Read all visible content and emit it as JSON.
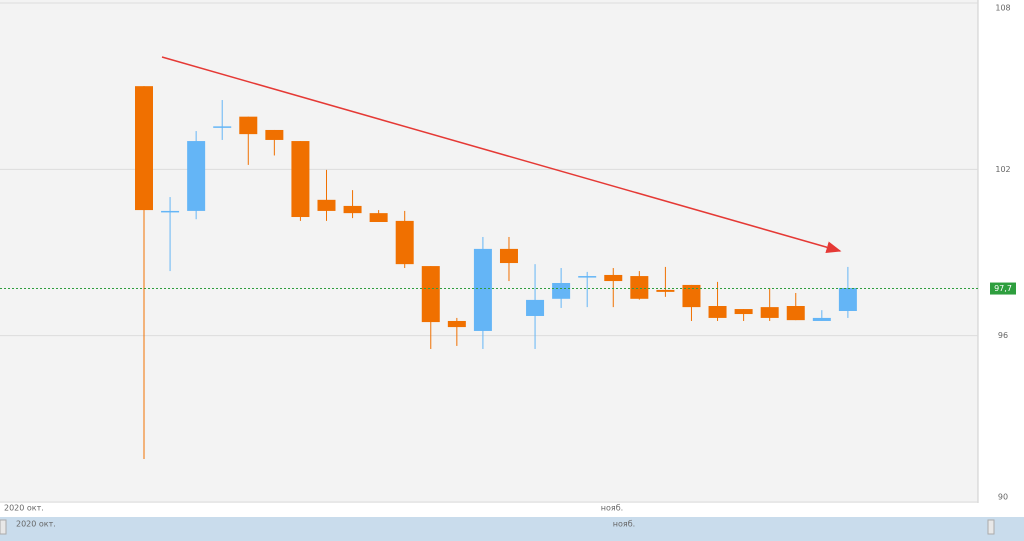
{
  "chart_data": {
    "type": "candlestick",
    "open": [
      105.0,
      100.5,
      100.5,
      103.5,
      103.9,
      103.42,
      103.02,
      100.9,
      100.68,
      100.42,
      100.14,
      98.51,
      96.53,
      96.17,
      99.13,
      96.71,
      97.33,
      98.15,
      98.19,
      98.15,
      97.65,
      97.83,
      97.07,
      96.96,
      97.03,
      97.07,
      96.53,
      96.89
    ],
    "high": [
      105.0,
      101.0,
      103.38,
      104.5,
      103.9,
      103.42,
      103.02,
      101.98,
      101.25,
      100.53,
      100.5,
      98.51,
      96.64,
      99.56,
      99.56,
      98.58,
      98.44,
      98.3,
      98.44,
      98.33,
      98.48,
      97.83,
      97.94,
      96.96,
      97.72,
      97.54,
      96.92,
      98.48
    ],
    "low": [
      91.55,
      98.33,
      100.2,
      103.06,
      102.16,
      102.5,
      100.14,
      100.14,
      100.24,
      100.1,
      98.44,
      95.52,
      95.63,
      95.52,
      97.97,
      95.52,
      97.0,
      97.03,
      97.03,
      97.3,
      97.4,
      96.53,
      96.53,
      96.53,
      96.53,
      96.56,
      96.53,
      96.64
    ],
    "close": [
      100.53,
      100.5,
      103.02,
      103.55,
      103.27,
      103.06,
      100.28,
      100.5,
      100.42,
      100.1,
      98.58,
      96.49,
      96.31,
      99.13,
      98.62,
      97.29,
      97.9,
      98.15,
      97.97,
      97.33,
      97.58,
      97.03,
      96.64,
      96.78,
      96.64,
      96.56,
      96.64,
      97.72
    ],
    "up_color": "#64b5f6",
    "down_color": "#f07000",
    "ylim": [
      90,
      108
    ],
    "yticks": [
      90,
      96,
      102,
      108
    ],
    "grid": true,
    "x_labels": [
      "2020 окт.",
      "нояб."
    ],
    "last_price": {
      "value": 97.7,
      "label": "97,7"
    },
    "last_price_color": "#2e9e3e"
  }
}
